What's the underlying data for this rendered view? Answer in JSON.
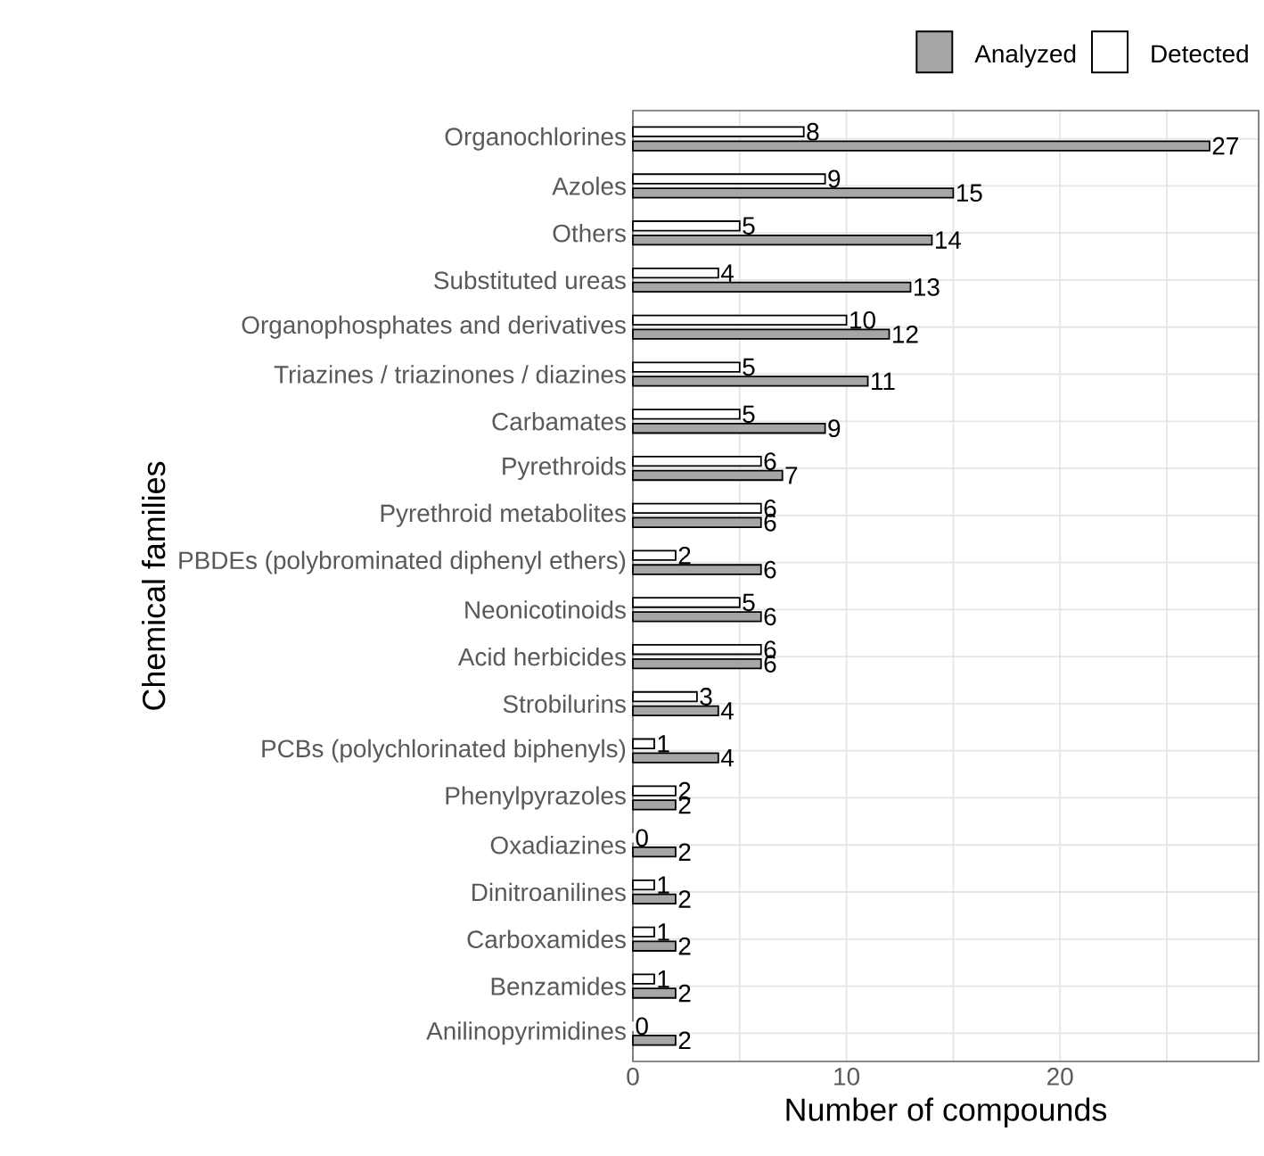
{
  "chart_data": {
    "type": "bar",
    "orientation": "horizontal",
    "xlabel": "Number of compounds",
    "ylabel": "Chemical families",
    "categories": [
      "Organochlorines",
      "Azoles",
      "Others",
      "Substituted ureas",
      "Organophosphates and derivatives",
      "Triazines / triazinones / diazines",
      "Carbamates",
      "Pyrethroids",
      "Pyrethroid metabolites",
      "PBDEs (polybrominated diphenyl ethers)",
      "Neonicotinoids",
      "Acid herbicides",
      "Strobilurins",
      "PCBs (polychlorinated biphenyls)",
      "Phenylpyrazoles",
      "Oxadiazines",
      "Dinitroanilines",
      "Carboxamides",
      "Benzamides",
      "Anilinopyrimidines"
    ],
    "series": [
      {
        "name": "Analyzed",
        "color": "#a6a6a6",
        "values": [
          27,
          15,
          14,
          13,
          12,
          11,
          9,
          7,
          6,
          6,
          6,
          6,
          4,
          4,
          2,
          2,
          2,
          2,
          2,
          2
        ]
      },
      {
        "name": "Detected",
        "color": "#ffffff",
        "values": [
          8,
          9,
          5,
          4,
          10,
          5,
          5,
          6,
          6,
          2,
          5,
          6,
          3,
          1,
          2,
          0,
          1,
          1,
          1,
          0
        ]
      }
    ],
    "xlim": [
      0,
      29.3
    ],
    "xticks": [
      0,
      {
        "value": 5,
        "label": null
      },
      10,
      {
        "value": 15,
        "label": null
      },
      20,
      {
        "value": 25,
        "label": null
      }
    ],
    "grid": true,
    "legend": "top right",
    "data_labels": true
  }
}
